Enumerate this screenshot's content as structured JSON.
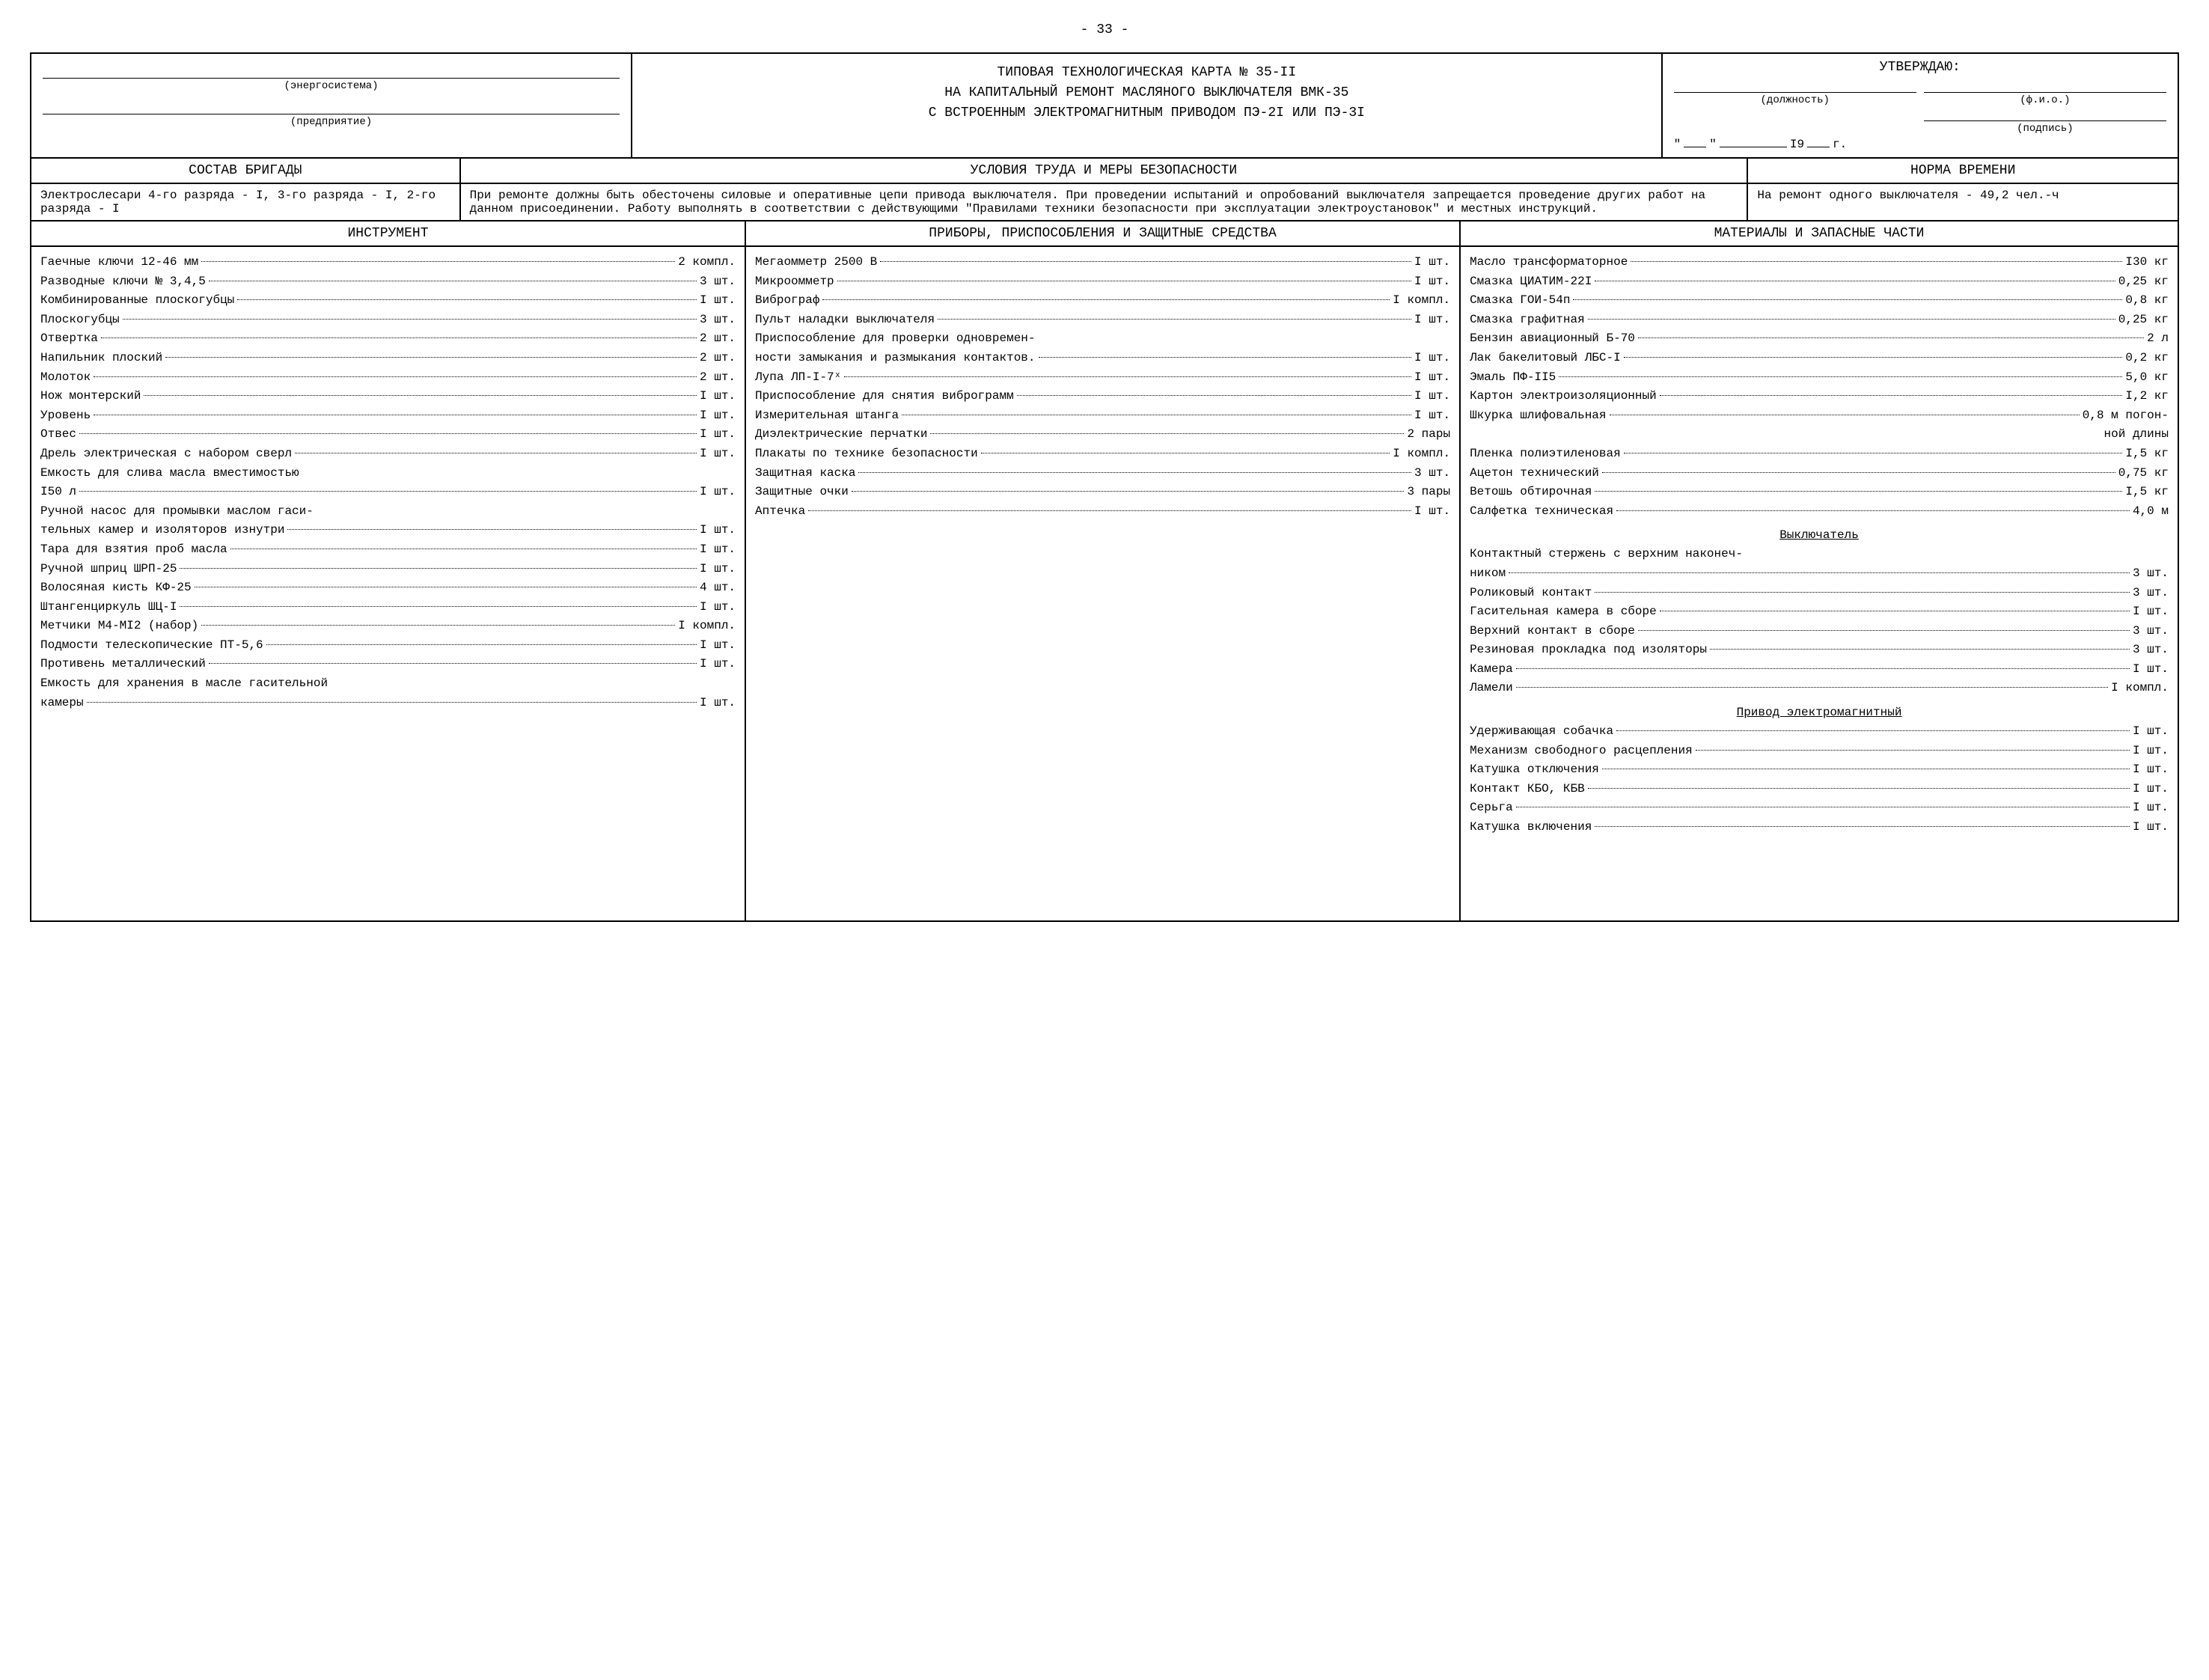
{
  "pageNumber": "- 33 -",
  "header": {
    "leftFields": [
      {
        "label": "(энергосистема)"
      },
      {
        "label": "(предприятие)"
      }
    ],
    "titleLines": [
      "ТИПОВАЯ ТЕХНОЛОГИЧЕСКАЯ КАРТА № 35-II",
      "НА КАПИТАЛЬНЫЙ РЕМОНТ МАСЛЯНОГО ВЫКЛЮЧАТЕЛЯ ВМК-35",
      "С ВСТРОЕННЫМ ЭЛЕКТРОМАГНИТНЫМ ПРИВОДОМ ПЭ-2I ИЛИ ПЭ-3I"
    ],
    "approve": {
      "title": "УТВЕРЖДАЮ:",
      "positionLabel": "(должность)",
      "nameLabel": "(ф.и.о.)",
      "signatureLabel": "(подпись)",
      "yearPrefix": "I9",
      "yearSuffix": "г."
    }
  },
  "sectionHeaders": {
    "brigade": "СОСТАВ БРИГАДЫ",
    "safety": "УСЛОВИЯ ТРУДА И МЕРЫ БЕЗОПАСНОСТИ",
    "timeNorm": "НОРМА ВРЕМЕНИ",
    "instrument": "ИНСТРУМЕНТ",
    "devices": "ПРИБОРЫ, ПРИСПОСОБЛЕНИЯ И ЗАЩИТНЫЕ СРЕДСТВА",
    "materials": "МАТЕРИАЛЫ И ЗАПАСНЫЕ ЧАСТИ"
  },
  "brigadeText": "Электрослесари 4-го разряда - I, 3-го разряда - I, 2-го разряда - I",
  "safetyText": "При ремонте должны быть обесточены силовые и оперативные цепи привода выключателя. При проведении испытаний и опробований выключателя запрещается проведение других работ на данном присоединении. Работу выполнять в соответствии с действующими \"Правилами техники безопасности при эксплуатации электроустановок\" и местных инструкций.",
  "timeNormText": "На ремонт одного выключателя - 49,2 чел.-ч",
  "instruments": [
    {
      "label": "Гаечные ключи 12-46 мм",
      "qty": "2 компл."
    },
    {
      "label": "Разводные ключи № 3,4,5",
      "qty": "3 шт."
    },
    {
      "label": "Комбинированные плоскогубцы",
      "qty": "I шт."
    },
    {
      "label": "Плоскогубцы",
      "qty": "3 шт."
    },
    {
      "label": "Отвертка",
      "qty": "2 шт."
    },
    {
      "label": "Напильник плоский",
      "qty": "2 шт."
    },
    {
      "label": "Молоток",
      "qty": "2 шт."
    },
    {
      "label": "Нож монтерский",
      "qty": "I шт."
    },
    {
      "label": "Уровень",
      "qty": "I шт."
    },
    {
      "label": "Отвес",
      "qty": "I шт."
    },
    {
      "label": "Дрель электрическая с набором сверл",
      "qty": "I шт."
    },
    {
      "label": "Емкость для слива масла вместимостью",
      "cont": "I50 л",
      "qty": "I шт."
    },
    {
      "label": "Ручной насос для промывки маслом гаси-",
      "cont": "тельных камер и изоляторов изнутри",
      "qty": "I шт."
    },
    {
      "label": "Тара для взятия проб масла",
      "qty": "I шт."
    },
    {
      "label": "Ручной шприц ШРП-25",
      "qty": "I шт."
    },
    {
      "label": "Волосяная кисть КФ-25",
      "qty": "4 шт."
    },
    {
      "label": "Штангенциркуль ШЦ-I",
      "qty": "I шт."
    },
    {
      "label": "Метчики М4-МI2 (набор)",
      "qty": "I компл."
    },
    {
      "label": "Подмости телескопические ПТ-5,6",
      "qty": "I шт."
    },
    {
      "label": "Противень металлический",
      "qty": "I шт."
    },
    {
      "label": "Емкость для хранения в масле гасительной",
      "cont": "камеры",
      "qty": "I шт."
    }
  ],
  "devices": [
    {
      "label": "Мегаомметр 2500 В",
      "qty": "I шт."
    },
    {
      "label": "Микроомметр",
      "qty": "I шт."
    },
    {
      "label": "Виброграф",
      "qty": "I компл."
    },
    {
      "label": "Пульт наладки выключателя",
      "qty": "I шт."
    },
    {
      "label": "Приспособление для проверки одновремен-",
      "cont": "ности замыкания и размыкания контактов.",
      "qty": "I шт."
    },
    {
      "label": "Лупа ЛП-I-7ˣ",
      "qty": "I шт."
    },
    {
      "label": "Приспособление для снятия виброграмм",
      "qty": "I шт."
    },
    {
      "label": "Измерительная штанга",
      "qty": "I шт."
    },
    {
      "label": "Диэлектрические перчатки",
      "qty": "2 пары"
    },
    {
      "label": "Плакаты по технике безопасности",
      "qty": "I компл."
    },
    {
      "label": "Защитная каска",
      "qty": "3 шт."
    },
    {
      "label": "Защитные очки",
      "qty": "3 пары"
    },
    {
      "label": "Аптечка",
      "qty": "I шт."
    }
  ],
  "materials": [
    {
      "label": "Масло трансформаторное",
      "qty": "I30 кг"
    },
    {
      "label": "Смазка ЦИАТИМ-22I",
      "qty": "0,25 кг"
    },
    {
      "label": "Смазка ГОИ-54п",
      "qty": "0,8 кг"
    },
    {
      "label": "Смазка графитная",
      "qty": "0,25 кг"
    },
    {
      "label": "Бензин авиационный Б-70",
      "qty": "2 л"
    },
    {
      "label": "Лак бакелитовый ЛБС-I",
      "qty": "0,2 кг"
    },
    {
      "label": "Эмаль ПФ-II5",
      "qty": "5,0 кг"
    },
    {
      "label": "Картон электроизоляционный",
      "qty": "I,2 кг"
    },
    {
      "label": "Шкурка шлифовальная",
      "qty": "0,8 м погон-",
      "trail": "ной длины"
    },
    {
      "label": "Пленка полиэтиленовая",
      "qty": "I,5 кг"
    },
    {
      "label": "Ацетон технический",
      "qty": "0,75 кг"
    },
    {
      "label": "Ветошь обтирочная",
      "qty": "I,5 кг"
    },
    {
      "label": "Салфетка техническая",
      "qty": "4,0 м"
    }
  ],
  "subheaders": {
    "switch": "Выключатель",
    "drive": "Привод электромагнитный"
  },
  "switchParts": [
    {
      "label": "Контактный стержень с верхним наконеч-",
      "cont": "ником",
      "qty": "3 шт."
    },
    {
      "label": "Роликовый контакт",
      "qty": "3 шт."
    },
    {
      "label": "Гасительная камера в сборе",
      "qty": "I шт."
    },
    {
      "label": "Верхний контакт в сборе",
      "qty": "3 шт."
    },
    {
      "label": "Резиновая прокладка под изоляторы",
      "qty": "3 шт."
    },
    {
      "label": "Камера",
      "qty": "I шт."
    },
    {
      "label": "Ламели",
      "qty": "I компл."
    }
  ],
  "driveParts": [
    {
      "label": "Удерживающая собачка",
      "qty": "I шт."
    },
    {
      "label": "Механизм свободного расцепления",
      "qty": "I шт."
    },
    {
      "label": "Катушка отключения",
      "qty": "I шт."
    },
    {
      "label": "Контакт КБО, КБВ",
      "qty": "I шт."
    },
    {
      "label": "Серьга",
      "qty": "I шт."
    },
    {
      "label": "Катушка включения",
      "qty": "I шт."
    }
  ]
}
